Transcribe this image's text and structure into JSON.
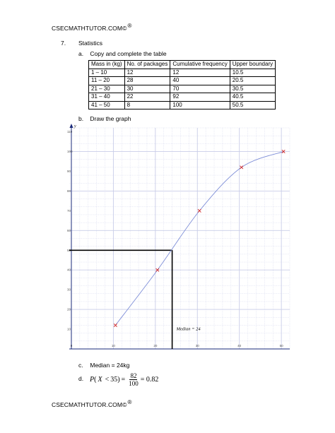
{
  "header": {
    "text": "CSECMATHTUTOR.COM©",
    "reg": "®"
  },
  "footer": {
    "text": "CSECMATHTUTOR.COM©",
    "reg": "®"
  },
  "question": {
    "number": "7.",
    "title": "Statistics"
  },
  "parts": {
    "a": {
      "label": "a.",
      "text": "Copy and complete the table"
    },
    "b": {
      "label": "b.",
      "text": "Draw the graph"
    },
    "c": {
      "label": "c.",
      "text": "Median = 24kg"
    },
    "d": {
      "label": "d.",
      "p": "P",
      "lparen": "(",
      "x": "X",
      "lt": "<",
      "val": "35",
      "rparen": ")",
      "eq": "=",
      "num": "82",
      "den": "100",
      "result": "= 0.82"
    }
  },
  "table": {
    "headers": [
      "Mass in (kg)",
      "No. of packages",
      "Cumulative frequency",
      "Upper boundary"
    ],
    "rows": [
      [
        "1 – 10",
        "12",
        "12",
        "10.5"
      ],
      [
        "11 – 20",
        "28",
        "40",
        "20.5"
      ],
      [
        "21 – 30",
        "30",
        "70",
        "30.5"
      ],
      [
        "31 – 40",
        "22",
        "92",
        "40.5"
      ],
      [
        "41 – 50",
        "8",
        "100",
        "50.5"
      ]
    ]
  },
  "chart_data": {
    "type": "line",
    "axis_letter": "y",
    "x_ticks": [
      "0",
      "10",
      "20",
      "30",
      "40",
      "50"
    ],
    "x_tick_values": [
      0,
      10,
      20,
      30,
      40,
      50
    ],
    "y_ticks": [
      "10",
      "20",
      "30",
      "40",
      "50",
      "60",
      "70",
      "80",
      "90",
      "100",
      "110"
    ],
    "y_tick_values": [
      10,
      20,
      30,
      40,
      50,
      60,
      70,
      80,
      90,
      100,
      110
    ],
    "xlim": [
      -0.5,
      52
    ],
    "ylim": [
      0,
      112
    ],
    "points": [
      {
        "x": 10.5,
        "y": 12
      },
      {
        "x": 20.5,
        "y": 40
      },
      {
        "x": 30.5,
        "y": 70
      },
      {
        "x": 40.5,
        "y": 92
      },
      {
        "x": 50.5,
        "y": 100
      }
    ],
    "median": {
      "x": 24,
      "y": 50
    },
    "annotation": "Median = 24",
    "line_color": "#7f8fd8",
    "marker_color": "#d02020",
    "grid_color": "#c9cde8"
  }
}
